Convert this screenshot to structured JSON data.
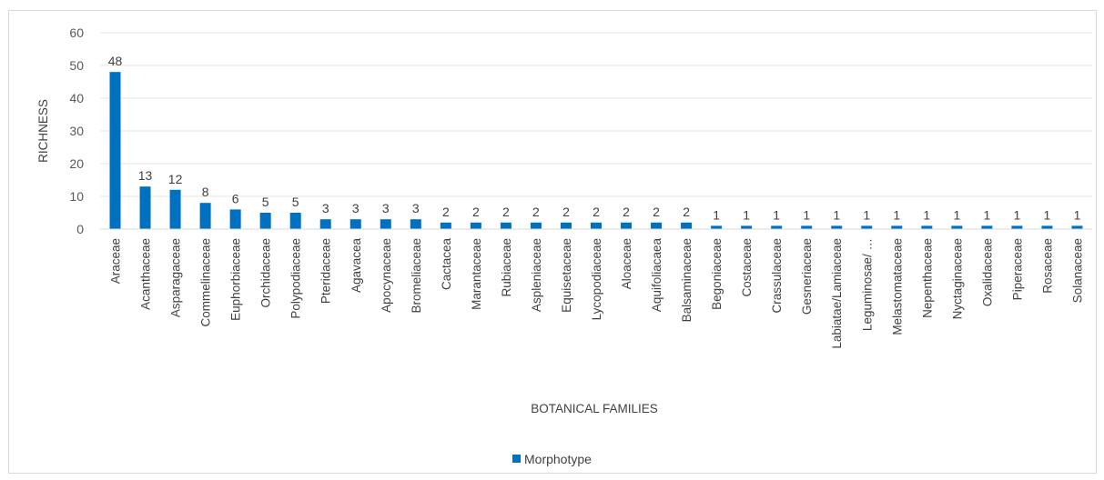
{
  "chart_data": {
    "type": "bar",
    "xlabel": "BOTANICAL FAMILIES",
    "ylabel": "RICHNESS",
    "ylim": [
      0,
      60
    ],
    "yticks": [
      0,
      10,
      20,
      30,
      40,
      50,
      60
    ],
    "grid": true,
    "legend_position": "bottom",
    "bar_color": "#0070c0",
    "categories": [
      "Araceae",
      "Acanthaceae",
      "Asparagaceae",
      "Commelinaceae",
      "Euphorbiaceae",
      "Orchidaceae",
      "Polypodiaceae",
      "Pteridaceae",
      "Agavacea",
      "Apocynaceae",
      "Bromeliaceae",
      "Cactacea",
      "Marantaceae",
      "Rubiaceae",
      "Aspleniaceae",
      "Equisetaceae",
      "Lycopodiaceae",
      "Aloaceae",
      "Aquifoliacaea",
      "Balsaminaceae",
      "Begoniaceae",
      "Costaceae",
      "Crassulaceae",
      "Gesneriaceae",
      "Labiatae/Lamiaceae",
      "Leguminosae/ …",
      "Melastomataceae",
      "Nepenthaceae",
      "Nyctaginaceae",
      "Oxalidaceae",
      "Piperaceae",
      "Rosaceae",
      "Solanaceae"
    ],
    "series": [
      {
        "name": "Morphotype",
        "values": [
          48,
          13,
          12,
          8,
          6,
          5,
          5,
          3,
          3,
          3,
          3,
          2,
          2,
          2,
          2,
          2,
          2,
          2,
          2,
          2,
          1,
          1,
          1,
          1,
          1,
          1,
          1,
          1,
          1,
          1,
          1,
          1,
          1
        ]
      }
    ]
  }
}
